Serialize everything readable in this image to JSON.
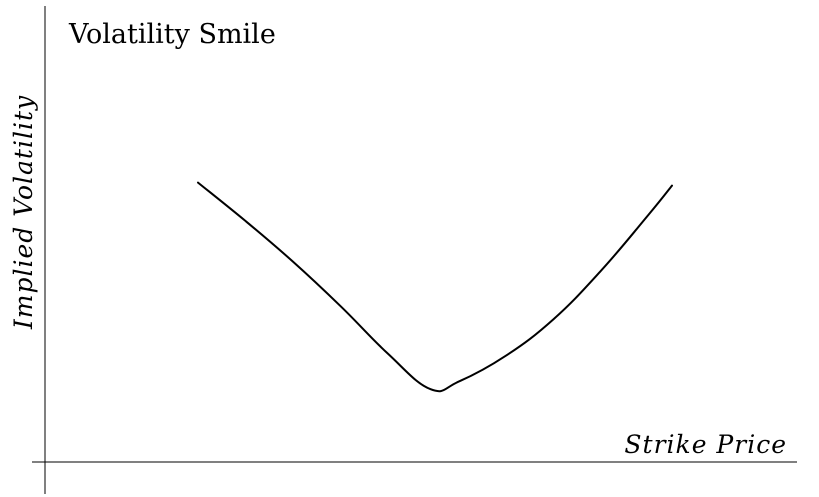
{
  "chart_data": {
    "type": "line",
    "title": "Volatility Smile",
    "xlabel": "Strike Price",
    "ylabel": "Implied Volatility",
    "grid": false,
    "legend": "none",
    "colors": {
      "curve": "#000000",
      "axes": "#000000",
      "background": "#ffffff"
    },
    "series": [
      {
        "x": [
          0.0,
          0.1,
          0.2,
          0.3,
          0.4,
          0.49,
          0.55,
          0.65,
          0.75,
          0.85,
          0.95,
          1.0
        ],
        "y": [
          0.751,
          0.648,
          0.539,
          0.42,
          0.292,
          0.196,
          0.216,
          0.286,
          0.384,
          0.514,
          0.664,
          0.743
        ]
      }
    ],
    "xlim": [
      0,
      1
    ],
    "ylim": [
      0,
      1
    ]
  }
}
